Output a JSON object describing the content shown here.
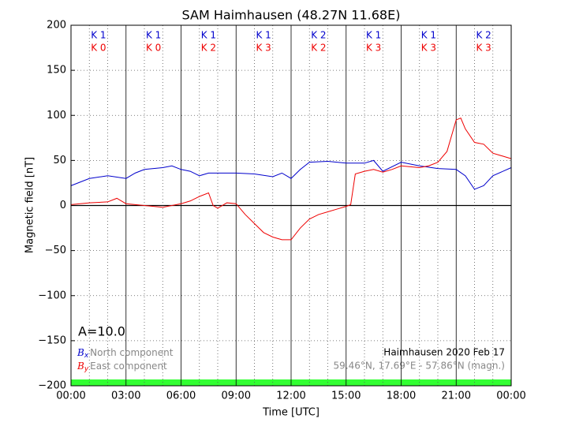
{
  "chart_data": {
    "type": "line",
    "title": "SAM Haimhausen (48.27N 11.68E)",
    "xlabel": "Time [UTC]",
    "ylabel": "Magnetic field [nT]",
    "xlim": [
      0,
      24
    ],
    "xticks": [
      {
        "value": 0,
        "label": "00:00"
      },
      {
        "value": 3,
        "label": "03:00"
      },
      {
        "value": 6,
        "label": "06:00"
      },
      {
        "value": 9,
        "label": "09:00"
      },
      {
        "value": 12,
        "label": "12:00"
      },
      {
        "value": 15,
        "label": "15:00"
      },
      {
        "value": 18,
        "label": "18:00"
      },
      {
        "value": 21,
        "label": "21:00"
      },
      {
        "value": 24,
        "label": "00:00"
      }
    ],
    "xminor": [
      1,
      2,
      4,
      5,
      7,
      8,
      10,
      11,
      13,
      14,
      16,
      17,
      19,
      20,
      22,
      23
    ],
    "ylim": [
      -200,
      200
    ],
    "yticks": [
      {
        "value": -200,
        "label": "−200"
      },
      {
        "value": -150,
        "label": "−150"
      },
      {
        "value": -100,
        "label": "−100"
      },
      {
        "value": -50,
        "label": "−50"
      },
      0,
      50,
      100,
      150,
      200
    ],
    "grid": true,
    "series": [
      {
        "name": "North component",
        "symbol": "B",
        "subscript": "x",
        "color": "#0000cc",
        "x": [
          0,
          1,
          2,
          3,
          3.5,
          4,
          5,
          5.5,
          6,
          6.5,
          7,
          7.5,
          8,
          9,
          10,
          11,
          11.5,
          12,
          12.5,
          13,
          14,
          15,
          16,
          16.5,
          17,
          18,
          19,
          20,
          21,
          21.5,
          22,
          22.5,
          23,
          24
        ],
        "values": [
          22,
          30,
          33,
          30,
          36,
          40,
          42,
          44,
          40,
          38,
          33,
          36,
          36,
          36,
          35,
          32,
          36,
          30,
          40,
          48,
          49,
          47,
          47,
          50,
          38,
          48,
          44,
          41,
          40,
          33,
          18,
          22,
          33,
          42
        ]
      },
      {
        "name": "East component",
        "symbol": "B",
        "subscript": "y",
        "color": "#ee0000",
        "x": [
          0,
          1,
          2,
          2.5,
          3,
          4,
          5,
          6,
          6.5,
          7,
          7.5,
          7.75,
          8,
          8.5,
          9,
          9.5,
          10,
          10.5,
          11,
          11.5,
          12,
          12.5,
          13,
          13.5,
          14,
          14.5,
          15,
          15.25,
          15.5,
          16,
          16.5,
          17,
          17.5,
          18,
          19,
          19.5,
          20,
          20.5,
          21,
          21.25,
          21.5,
          22,
          22.5,
          23,
          23.5,
          24
        ],
        "values": [
          1,
          3,
          4,
          8,
          2,
          0,
          -2,
          2,
          5,
          10,
          14,
          0,
          -3,
          3,
          2,
          -10,
          -20,
          -30,
          -35,
          -38,
          -38,
          -25,
          -15,
          -10,
          -7,
          -4,
          -1,
          1,
          35,
          38,
          40,
          37,
          40,
          44,
          42,
          44,
          48,
          60,
          95,
          97,
          85,
          70,
          68,
          58,
          55,
          52
        ]
      }
    ],
    "k_north": [
      "K 1",
      "K 1",
      "K 1",
      "K 1",
      "K 2",
      "K 1",
      "K 1",
      "K 2"
    ],
    "k_east": [
      "K 0",
      "K 0",
      "K 2",
      "K 3",
      "K 2",
      "K 3",
      "K 3",
      "K 3"
    ],
    "a_index": "A=10.0",
    "station_date": "Haimhausen 2020 Feb 17",
    "coordinates": "59.46°N, 17.69°E - 57.86°N (magn.)"
  }
}
